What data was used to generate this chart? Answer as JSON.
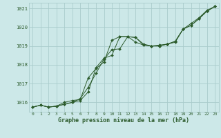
{
  "title": "Graphe pression niveau de la mer (hPa)",
  "background_color": "#cce8e8",
  "grid_color": "#aacccc",
  "line_color": "#2d5c2d",
  "xlim": [
    -0.5,
    23.5
  ],
  "ylim": [
    1015.5,
    1021.3
  ],
  "yticks": [
    1016,
    1017,
    1018,
    1019,
    1020,
    1021
  ],
  "xticks": [
    0,
    1,
    2,
    3,
    4,
    5,
    6,
    7,
    8,
    9,
    10,
    11,
    12,
    13,
    14,
    15,
    16,
    17,
    18,
    19,
    20,
    21,
    22,
    23
  ],
  "series1_x": [
    0,
    1,
    2,
    3,
    4,
    5,
    6,
    7,
    8,
    9,
    10,
    11,
    12,
    13,
    14,
    15,
    16,
    17,
    18,
    19,
    20,
    21,
    22,
    23
  ],
  "series1_y": [
    1015.75,
    1015.85,
    1015.75,
    1015.8,
    1015.9,
    1016.0,
    1016.1,
    1016.55,
    1017.85,
    1018.35,
    1018.5,
    1019.5,
    1019.5,
    1019.45,
    1019.05,
    1019.0,
    1019.0,
    1019.1,
    1019.2,
    1019.9,
    1020.2,
    1020.5,
    1020.9,
    1021.1
  ],
  "series2_x": [
    0,
    1,
    2,
    3,
    4,
    5,
    6,
    7,
    8,
    9,
    10,
    11,
    12,
    13,
    14,
    15,
    16,
    17,
    18,
    19,
    20,
    21,
    22,
    23
  ],
  "series2_y": [
    1015.75,
    1015.85,
    1015.75,
    1015.8,
    1016.0,
    1016.1,
    1016.15,
    1017.3,
    1017.8,
    1018.15,
    1019.3,
    1019.5,
    1019.5,
    1019.2,
    1019.05,
    1019.0,
    1019.05,
    1019.1,
    1019.25,
    1019.9,
    1020.1,
    1020.45,
    1020.85,
    1021.1
  ],
  "series3_x": [
    0,
    1,
    2,
    3,
    4,
    5,
    6,
    7,
    8,
    9,
    10,
    11,
    12,
    13,
    14,
    15,
    16,
    17,
    18,
    19,
    20,
    21,
    22,
    23
  ],
  "series3_y": [
    1015.75,
    1015.85,
    1015.75,
    1015.8,
    1015.9,
    1016.0,
    1016.2,
    1016.8,
    1017.55,
    1018.3,
    1018.8,
    1018.85,
    1019.5,
    1019.45,
    1019.1,
    1019.0,
    1019.0,
    1019.1,
    1019.25,
    1019.9,
    1020.1,
    1020.45,
    1020.85,
    1021.1
  ]
}
